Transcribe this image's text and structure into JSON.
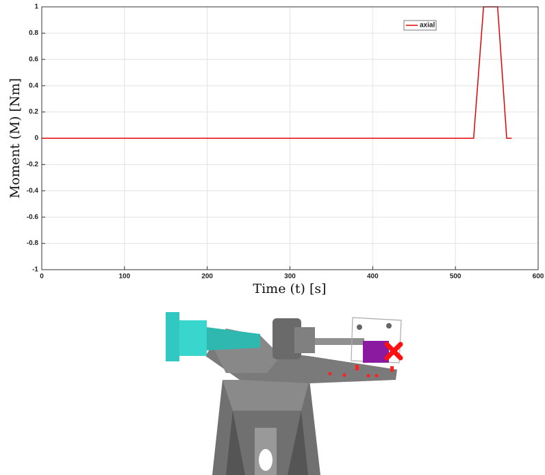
{
  "chart_data": {
    "type": "line",
    "x_label": "Time (t) [s]",
    "y_label": "Moment (M) [Nm]",
    "x": [
      0,
      522,
      534,
      551,
      562,
      568
    ],
    "series": [
      {
        "name": "axial",
        "color": "#e00000",
        "values": [
          0,
          0,
          1,
          1,
          0,
          0
        ]
      }
    ],
    "xlim": [
      0,
      600
    ],
    "xticks": [
      0,
      100,
      200,
      300,
      400,
      500,
      600
    ],
    "ylim": [
      -1,
      1
    ],
    "yticks": [
      -1,
      -0.8,
      -0.6,
      -0.4,
      -0.2,
      0,
      0.2,
      0.4,
      0.6,
      0.8,
      1
    ],
    "grid": true,
    "legend": "upper-right"
  }
}
